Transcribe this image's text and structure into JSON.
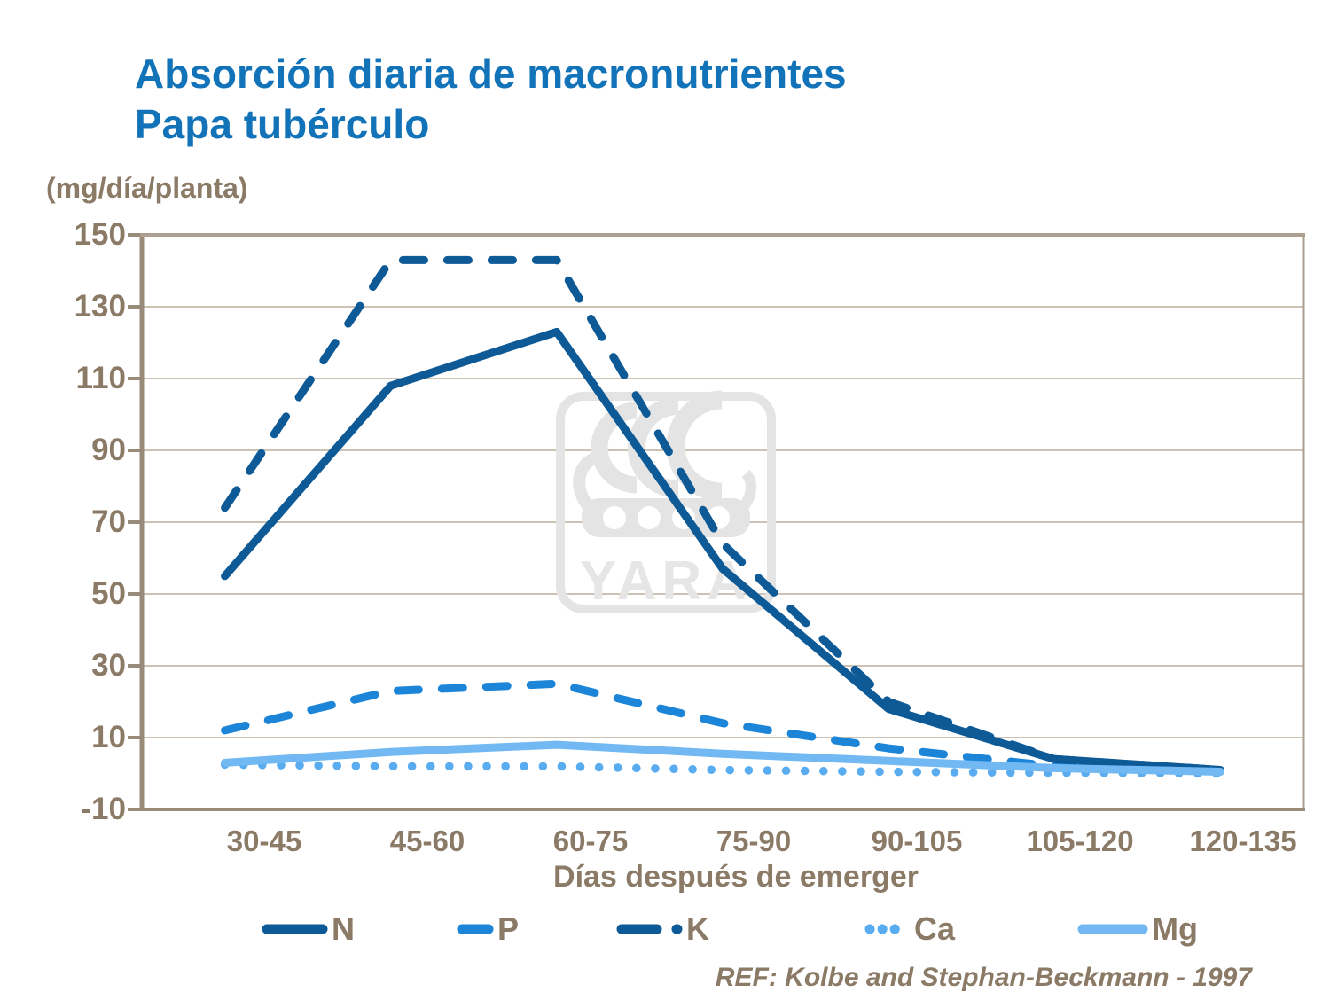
{
  "title": {
    "line1": "Absorción diaria de macronutrientes",
    "line2": "Papa tubérculo"
  },
  "y_axis_unit": "(mg/día/planta)",
  "x_axis_title": "Días después de emerger",
  "reference": "REF: Kolbe and Stephan-Beckmann - 1997",
  "watermark_text": "YARA",
  "colors": {
    "title_blue": "#1273B9",
    "axis_text_brown": "#8A7A66",
    "gridline": "#CCC2B4",
    "frame": "#AC9F8F",
    "axis_accent": "#998B79",
    "watermark_gray": "#E4E4E4",
    "n_dark_blue": "#0E5A96",
    "p_medium_blue": "#1C85D8",
    "ca_light_blue": "#59ACF0",
    "mg_light_blue": "#72B9F3"
  },
  "chart_data": {
    "type": "line",
    "title": "Absorción diaria de macronutrientes - Papa tubérculo",
    "ylabel": "(mg/día/planta)",
    "xlabel": "Días después de emerger",
    "categories": [
      "30-45",
      "45-60",
      "60-75",
      "75-90",
      "90-105",
      "105-120",
      "120-135"
    ],
    "yticks": [
      150,
      130,
      110,
      90,
      70,
      50,
      30,
      10,
      -10
    ],
    "ylim": [
      -10,
      150
    ],
    "grid": "horizontal",
    "legend_position": "bottom",
    "series": [
      {
        "name": "N",
        "style": "solid",
        "color": "#0E5A96",
        "values": [
          55,
          108,
          123,
          57,
          18,
          4,
          1
        ]
      },
      {
        "name": "P",
        "style": "dash",
        "color": "#1C85D8",
        "values": [
          12,
          23,
          25,
          14,
          7,
          2,
          1
        ]
      },
      {
        "name": "K",
        "style": "dash",
        "color": "#0E5A96",
        "values": [
          74,
          143,
          143,
          64,
          20,
          4,
          1
        ]
      },
      {
        "name": "Ca",
        "style": "dot",
        "color": "#59ACF0",
        "values": [
          2.5,
          2,
          2,
          1,
          0.5,
          0.2,
          0
        ]
      },
      {
        "name": "Mg",
        "style": "solid",
        "color": "#72B9F3",
        "values": [
          3,
          6,
          8,
          5.5,
          3.5,
          1.5,
          0.5
        ]
      }
    ]
  }
}
